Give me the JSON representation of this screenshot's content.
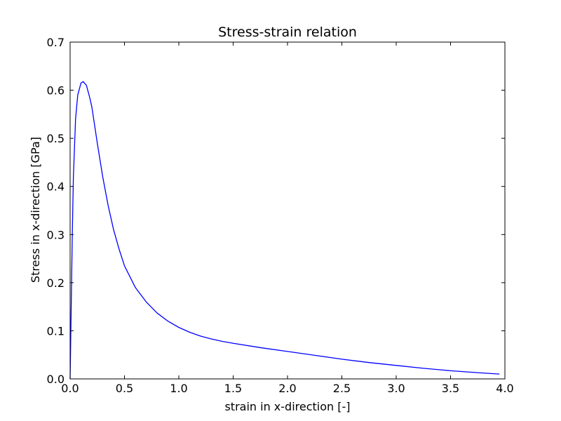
{
  "chart_data": {
    "type": "line",
    "title": "Stress-strain relation",
    "xlabel": "strain in x-direction [-]",
    "ylabel": "Stress in x-direction [GPa]",
    "xlim": [
      0.0,
      4.0
    ],
    "ylim": [
      0.0,
      0.7
    ],
    "xticks": [
      0.0,
      0.5,
      1.0,
      1.5,
      2.0,
      2.5,
      3.0,
      3.5,
      4.0
    ],
    "xtick_labels": [
      "0.0",
      "0.5",
      "1.0",
      "1.5",
      "2.0",
      "2.5",
      "3.0",
      "3.5",
      "4.0"
    ],
    "yticks": [
      0.0,
      0.1,
      0.2,
      0.3,
      0.4,
      0.5,
      0.6,
      0.7
    ],
    "ytick_labels": [
      "0.0",
      "0.1",
      "0.2",
      "0.3",
      "0.4",
      "0.5",
      "0.6",
      "0.7"
    ],
    "grid": false,
    "legend": "none",
    "series": [
      {
        "color": "#0000ff",
        "x": [
          0.0,
          0.01,
          0.02,
          0.03,
          0.05,
          0.07,
          0.1,
          0.12,
          0.15,
          0.18,
          0.2,
          0.25,
          0.3,
          0.35,
          0.4,
          0.45,
          0.5,
          0.6,
          0.7,
          0.8,
          0.9,
          1.0,
          1.1,
          1.2,
          1.3,
          1.4,
          1.5,
          1.75,
          2.0,
          2.25,
          2.5,
          2.75,
          3.0,
          3.25,
          3.5,
          3.75,
          3.95
        ],
        "y": [
          0.0,
          0.15,
          0.3,
          0.42,
          0.54,
          0.59,
          0.615,
          0.618,
          0.61,
          0.585,
          0.565,
          0.49,
          0.42,
          0.36,
          0.31,
          0.27,
          0.235,
          0.19,
          0.16,
          0.137,
          0.12,
          0.107,
          0.097,
          0.089,
          0.083,
          0.078,
          0.074,
          0.065,
          0.057,
          0.049,
          0.041,
          0.034,
          0.028,
          0.022,
          0.017,
          0.013,
          0.01
        ]
      }
    ]
  }
}
